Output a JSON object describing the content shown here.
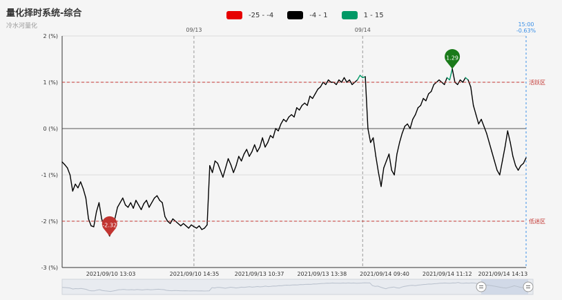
{
  "header": {
    "title": "量化择时系统-综合",
    "subtitle": "冷水河量化"
  },
  "colors": {
    "legend_red": "#e60000",
    "legend_black": "#000000",
    "legend_green": "#009966",
    "line_black": "#000000",
    "line_green": "#009966",
    "marker_min": "#c23531",
    "marker_max": "#1a7a1a",
    "threshold": "#c23531",
    "current": "#3a8fe6"
  },
  "legend": [
    {
      "label": "-25 - -4",
      "color": "#e60000"
    },
    {
      "label": "-4 - 1",
      "color": "#000000"
    },
    {
      "label": "1 - 15",
      "color": "#009966"
    }
  ],
  "chart_data": {
    "type": "line",
    "title": "量化择时系统-综合",
    "ylim": [
      -3,
      2
    ],
    "y_ticks": [
      "2 (%)",
      "1 (%)",
      "0 (%)",
      "-1 (%)",
      "-2 (%)",
      "-3 (%)"
    ],
    "x_tick_labels": [
      "2021/09/10 13:03",
      "2021/09/10 14:35",
      "2021/09/13 10:37",
      "2021/09/13 13:38",
      "2021/09/14 09:40",
      "2021/09/14 11:12",
      "2021/09/14 14:13"
    ],
    "day_dividers": [
      "09/13",
      "09/14"
    ],
    "current": {
      "time": "15:00",
      "value_label": "-0.63%"
    },
    "markLines": [
      {
        "value": 1,
        "label": "活跃区"
      },
      {
        "value": -2,
        "label": "低迷区"
      }
    ],
    "markers": [
      {
        "type": "min",
        "label": "-2.32",
        "value": -2.32
      },
      {
        "type": "max",
        "label": "1.29",
        "value": 1.29
      }
    ],
    "visual_map": [
      {
        "range": "-25 - -4",
        "color": "#e60000"
      },
      {
        "range": "-4 - 1",
        "color": "#000000"
      },
      {
        "range": "1 - 15",
        "color": "#009966"
      }
    ],
    "series": [
      {
        "values": [
          -0.72,
          -0.78,
          -0.85,
          -1.0,
          -1.35,
          -1.2,
          -1.28,
          -1.15,
          -1.3,
          -1.5,
          -1.95,
          -2.1,
          -2.12,
          -1.8,
          -1.6,
          -1.95,
          -2.12,
          -2.2,
          -2.32,
          -2.18,
          -1.95,
          -1.7,
          -1.6,
          -1.5,
          -1.65,
          -1.7,
          -1.6,
          -1.72,
          -1.55,
          -1.65,
          -1.75,
          -1.62,
          -1.55,
          -1.7,
          -1.6,
          -1.5,
          -1.45,
          -1.55,
          -1.6,
          -1.9,
          -2.0,
          -2.05,
          -1.95,
          -2.0,
          -2.05,
          -2.1,
          -2.05,
          -2.1,
          -2.15,
          -2.08,
          -2.12,
          -2.15,
          -2.1,
          -2.18,
          -2.15,
          -2.08,
          -0.8,
          -0.95,
          -0.7,
          -0.75,
          -0.9,
          -1.05,
          -0.85,
          -0.65,
          -0.78,
          -0.95,
          -0.8,
          -0.6,
          -0.7,
          -0.55,
          -0.45,
          -0.6,
          -0.5,
          -0.35,
          -0.5,
          -0.4,
          -0.2,
          -0.4,
          -0.3,
          -0.15,
          -0.2,
          0.0,
          -0.05,
          0.1,
          0.2,
          0.15,
          0.25,
          0.3,
          0.25,
          0.45,
          0.4,
          0.5,
          0.55,
          0.5,
          0.7,
          0.65,
          0.75,
          0.85,
          0.9,
          1.0,
          0.95,
          1.05,
          1.0,
          1.0,
          0.95,
          1.05,
          1.0,
          1.1,
          1.0,
          1.05,
          0.95,
          1.0,
          1.05,
          1.15,
          1.1,
          1.12,
          0.0,
          -0.3,
          -0.2,
          -0.6,
          -0.95,
          -1.25,
          -0.85,
          -0.7,
          -0.55,
          -0.9,
          -1.0,
          -0.55,
          -0.3,
          -0.1,
          0.05,
          0.1,
          0.0,
          0.2,
          0.3,
          0.45,
          0.5,
          0.65,
          0.6,
          0.75,
          0.8,
          0.95,
          1.0,
          1.05,
          1.0,
          0.95,
          1.1,
          1.05,
          1.29,
          1.0,
          0.95,
          1.05,
          1.0,
          1.1,
          1.05,
          0.9,
          0.5,
          0.3,
          0.1,
          0.2,
          0.05,
          -0.1,
          -0.3,
          -0.5,
          -0.7,
          -0.9,
          -1.0,
          -0.7,
          -0.4,
          -0.05,
          -0.3,
          -0.6,
          -0.8,
          -0.9,
          -0.8,
          -0.75,
          -0.63
        ]
      }
    ]
  }
}
